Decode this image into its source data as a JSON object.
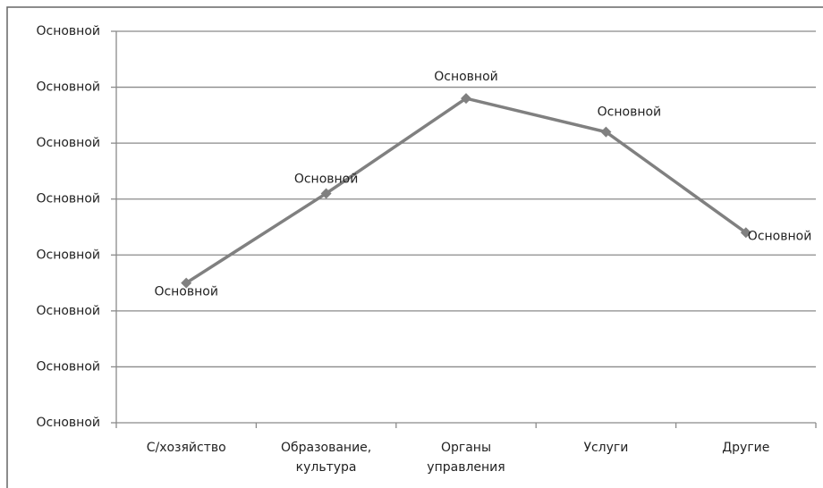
{
  "chart_data": {
    "type": "line",
    "categories": [
      "С/хозяйство",
      "Образование, культура",
      "Органы управления",
      "Услуги",
      "Другие"
    ],
    "series": [
      {
        "name": null,
        "color": "#808080",
        "values": [
          2.5,
          4.1,
          5.8,
          5.2,
          3.4
        ],
        "value_labels": [
          "Основной",
          "Основной",
          "Основной",
          "Основной",
          "Основной"
        ]
      }
    ],
    "ylim": [
      0,
      7
    ],
    "yticks": [
      {
        "value": 0,
        "label": "Основной"
      },
      {
        "value": 1,
        "label": "Основной"
      },
      {
        "value": 2,
        "label": "Основной"
      },
      {
        "value": 3,
        "label": "Основной"
      },
      {
        "value": 4,
        "label": "Основной"
      },
      {
        "value": 5,
        "label": "Основной"
      },
      {
        "value": 6,
        "label": "Основной"
      },
      {
        "value": 7,
        "label": "Основной"
      }
    ],
    "grid": true
  }
}
